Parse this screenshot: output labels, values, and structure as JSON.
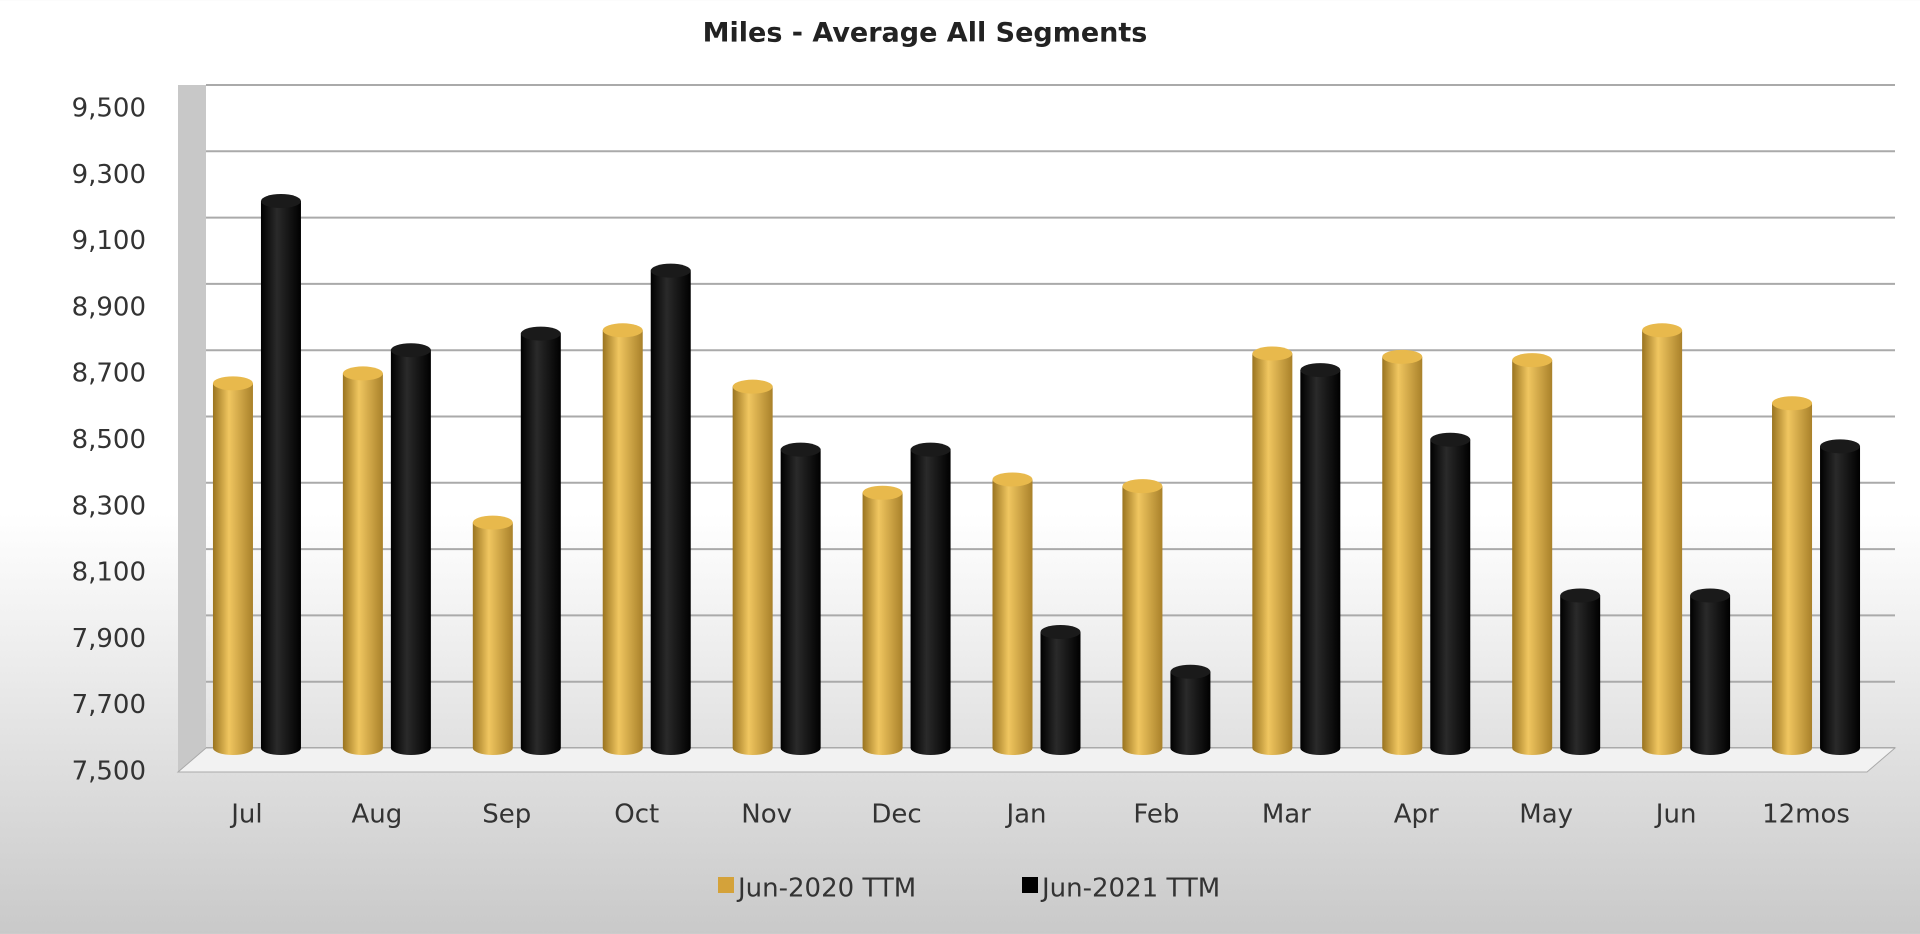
{
  "chart_data": {
    "type": "bar",
    "title": "Miles - Average All Segments",
    "categories": [
      "Jul",
      "Aug",
      "Sep",
      "Oct",
      "Nov",
      "Dec",
      "Jan",
      "Feb",
      "Mar",
      "Apr",
      "May",
      "Jun",
      "12mos"
    ],
    "series": [
      {
        "name": "Jun-2020 TTM",
        "color": "#d4a23a",
        "values": [
          8600,
          8630,
          8180,
          8760,
          8590,
          8270,
          8310,
          8290,
          8690,
          8680,
          8670,
          8760,
          8540
        ]
      },
      {
        "name": "Jun-2021 TTM",
        "color": "#000000",
        "values": [
          9150,
          8700,
          8750,
          8940,
          8400,
          8400,
          7850,
          7730,
          8640,
          8430,
          7960,
          7960,
          8410
        ]
      }
    ],
    "ylim": [
      7500,
      9500
    ],
    "yticks": [
      {
        "value": 7500,
        "label": "7,500"
      },
      {
        "value": 7700,
        "label": "7,700"
      },
      {
        "value": 7900,
        "label": "7,900"
      },
      {
        "value": 8100,
        "label": "8,100"
      },
      {
        "value": 8300,
        "label": "8,300"
      },
      {
        "value": 8500,
        "label": "8,500"
      },
      {
        "value": 8700,
        "label": "8,700"
      },
      {
        "value": 8900,
        "label": "8,900"
      },
      {
        "value": 9100,
        "label": "9,100"
      },
      {
        "value": 9300,
        "label": "9,300"
      },
      {
        "value": 9500,
        "label": "9,500"
      }
    ],
    "grid": true,
    "legend": "bottom"
  }
}
